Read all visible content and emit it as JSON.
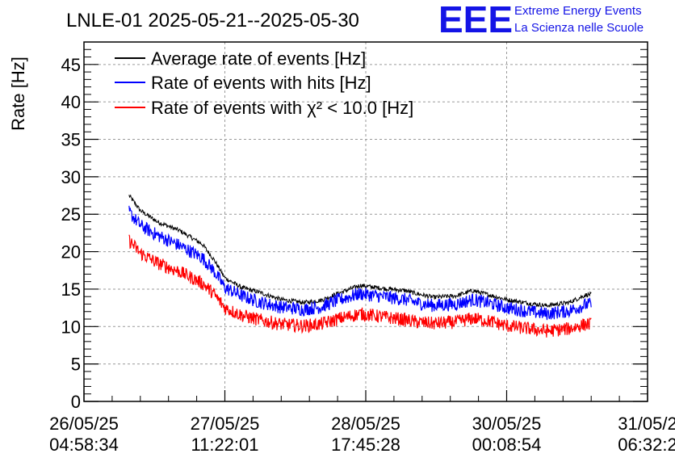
{
  "chart_data": {
    "type": "line",
    "title": "LNLE-01 2025-05-21--2025-05-30",
    "ylabel": "Rate [Hz]",
    "xlabel": "",
    "ylim": [
      0,
      48
    ],
    "xlim": [
      0,
      1
    ],
    "y_ticks": [
      0,
      5,
      10,
      15,
      20,
      25,
      30,
      35,
      40,
      45
    ],
    "x_ticks": [
      {
        "pos": 0.0,
        "date": "26/05/25",
        "time": "04:58:34"
      },
      {
        "pos": 0.25,
        "date": "27/05/25",
        "time": "11:22:01"
      },
      {
        "pos": 0.5,
        "date": "28/05/25",
        "time": "17:45:28"
      },
      {
        "pos": 0.75,
        "date": "30/05/25",
        "time": "00:08:54"
      },
      {
        "pos": 1.0,
        "date": "31/05/2",
        "time": "06:32:2"
      }
    ],
    "grid": true,
    "legend_placement": "top-left",
    "series": [
      {
        "name": "Average rate of events [Hz]",
        "color": "#000000",
        "x": [
          0.08,
          0.1,
          0.13,
          0.17,
          0.21,
          0.23,
          0.25,
          0.28,
          0.31,
          0.35,
          0.39,
          0.42,
          0.45,
          0.49,
          0.53,
          0.57,
          0.59,
          0.62,
          0.66,
          0.69,
          0.72,
          0.75,
          0.79,
          0.82,
          0.86,
          0.89,
          0.9
        ],
        "values": [
          27.5,
          25.5,
          24,
          22.8,
          21,
          19,
          16.5,
          15.2,
          14.6,
          13.6,
          13.2,
          13.5,
          14.4,
          15.5,
          15.1,
          14.8,
          14.4,
          13.9,
          14.1,
          14.8,
          14.2,
          13.6,
          13.1,
          12.8,
          13.2,
          14.2,
          14.3
        ],
        "noise": 0.3
      },
      {
        "name": "Rate of events with hits [Hz]",
        "color": "#0000ff",
        "x": [
          0.08,
          0.1,
          0.13,
          0.17,
          0.21,
          0.23,
          0.25,
          0.28,
          0.31,
          0.35,
          0.39,
          0.42,
          0.45,
          0.49,
          0.53,
          0.57,
          0.59,
          0.62,
          0.66,
          0.69,
          0.72,
          0.75,
          0.79,
          0.82,
          0.86,
          0.89,
          0.9
        ],
        "values": [
          25.3,
          23.5,
          22.2,
          20.8,
          19.2,
          17.5,
          15.2,
          14.1,
          13.3,
          12.6,
          12.3,
          12.6,
          13.5,
          14.4,
          14,
          13.6,
          13.2,
          12.8,
          13,
          13.6,
          13.1,
          12.5,
          12,
          11.7,
          12.1,
          12.9,
          13
        ],
        "noise": 0.9
      },
      {
        "name": "Rate of events with χ² < 10.0 [Hz]",
        "color": "#ff0000",
        "x": [
          0.08,
          0.1,
          0.13,
          0.17,
          0.21,
          0.23,
          0.25,
          0.28,
          0.31,
          0.35,
          0.39,
          0.42,
          0.45,
          0.49,
          0.53,
          0.57,
          0.59,
          0.62,
          0.66,
          0.69,
          0.72,
          0.75,
          0.79,
          0.82,
          0.86,
          0.89,
          0.9
        ],
        "values": [
          21.5,
          19.8,
          18.5,
          17.3,
          15.8,
          14.4,
          12.5,
          11.5,
          10.9,
          10.3,
          10.1,
          10.3,
          11,
          11.7,
          11.3,
          10.9,
          10.6,
          10.4,
          10.6,
          11.1,
          10.7,
          10.1,
          9.7,
          9.4,
          9.7,
          10.3,
          10.3
        ],
        "noise": 0.9
      }
    ]
  },
  "logo": {
    "mark": "EEE",
    "line1": "Extreme Energy Events",
    "line2": "La Scienza nelle Scuole",
    "color": "#1414e6"
  }
}
